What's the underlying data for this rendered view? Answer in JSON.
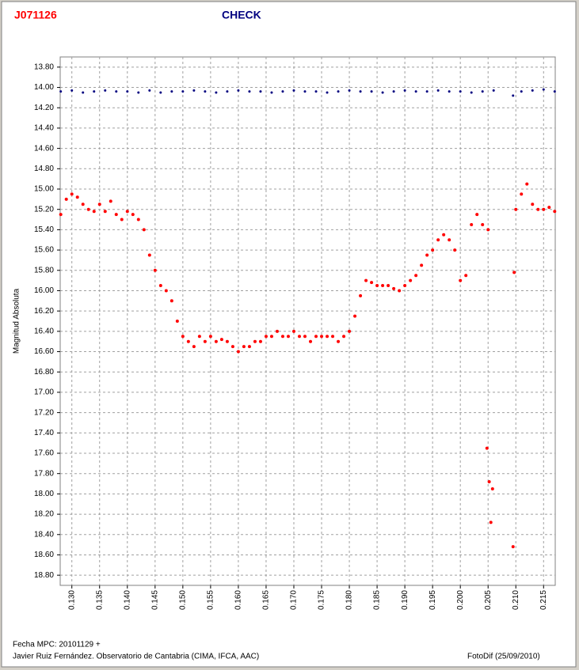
{
  "chart_data": {
    "type": "scatter",
    "y_label": "Magnitud Absoluta",
    "y_inverted": true,
    "grid": true,
    "xlim": [
      0.1279,
      0.2171
    ],
    "ylim": [
      13.7,
      18.9
    ],
    "xticks": [
      {
        "value": 0.13,
        "label": "0.130"
      },
      {
        "value": 0.135,
        "label": "0.135"
      },
      {
        "value": 0.14,
        "label": "0.140"
      },
      {
        "value": 0.145,
        "label": "0.145"
      },
      {
        "value": 0.15,
        "label": "0.150"
      },
      {
        "value": 0.155,
        "label": "0.155"
      },
      {
        "value": 0.16,
        "label": "0.160"
      },
      {
        "value": 0.165,
        "label": "0.165"
      },
      {
        "value": 0.17,
        "label": "0.170"
      },
      {
        "value": 0.175,
        "label": "0.175"
      },
      {
        "value": 0.18,
        "label": "0.180"
      },
      {
        "value": 0.185,
        "label": "0.185"
      },
      {
        "value": 0.19,
        "label": "0.190"
      },
      {
        "value": 0.195,
        "label": "0.195"
      },
      {
        "value": 0.2,
        "label": "0.200"
      },
      {
        "value": 0.205,
        "label": "0.205"
      },
      {
        "value": 0.21,
        "label": "0.210"
      },
      {
        "value": 0.215,
        "label": "0.215"
      }
    ],
    "yticks": [
      {
        "value": 13.8,
        "label": "13.80"
      },
      {
        "value": 14.0,
        "label": "14.00"
      },
      {
        "value": 14.2,
        "label": "14.20"
      },
      {
        "value": 14.4,
        "label": "14.40"
      },
      {
        "value": 14.6,
        "label": "14.60"
      },
      {
        "value": 14.8,
        "label": "14.80"
      },
      {
        "value": 15.0,
        "label": "15.00"
      },
      {
        "value": 15.2,
        "label": "15.20"
      },
      {
        "value": 15.4,
        "label": "15.40"
      },
      {
        "value": 15.6,
        "label": "15.60"
      },
      {
        "value": 15.8,
        "label": "15.80"
      },
      {
        "value": 16.0,
        "label": "16.00"
      },
      {
        "value": 16.2,
        "label": "16.20"
      },
      {
        "value": 16.4,
        "label": "16.40"
      },
      {
        "value": 16.6,
        "label": "16.60"
      },
      {
        "value": 16.8,
        "label": "16.80"
      },
      {
        "value": 17.0,
        "label": "17.00"
      },
      {
        "value": 17.2,
        "label": "17.20"
      },
      {
        "value": 17.4,
        "label": "17.40"
      },
      {
        "value": 17.6,
        "label": "17.60"
      },
      {
        "value": 17.8,
        "label": "17.80"
      },
      {
        "value": 18.0,
        "label": "18.00"
      },
      {
        "value": 18.2,
        "label": "18.20"
      },
      {
        "value": 18.4,
        "label": "18.40"
      },
      {
        "value": 18.6,
        "label": "18.60"
      },
      {
        "value": 18.8,
        "label": "18.80"
      }
    ],
    "series": [
      {
        "name": "J071126",
        "color": "#ff0000",
        "x": [
          0.128,
          0.129,
          0.13,
          0.131,
          0.132,
          0.133,
          0.134,
          0.135,
          0.136,
          0.137,
          0.138,
          0.139,
          0.14,
          0.141,
          0.142,
          0.143,
          0.144,
          0.145,
          0.146,
          0.147,
          0.148,
          0.149,
          0.15,
          0.151,
          0.152,
          0.153,
          0.154,
          0.155,
          0.156,
          0.157,
          0.158,
          0.159,
          0.16,
          0.161,
          0.162,
          0.163,
          0.164,
          0.165,
          0.166,
          0.167,
          0.168,
          0.169,
          0.17,
          0.171,
          0.172,
          0.173,
          0.174,
          0.175,
          0.176,
          0.177,
          0.178,
          0.179,
          0.18,
          0.181,
          0.182,
          0.183,
          0.184,
          0.185,
          0.186,
          0.187,
          0.188,
          0.189,
          0.19,
          0.191,
          0.192,
          0.193,
          0.194,
          0.195,
          0.196,
          0.197,
          0.198,
          0.199,
          0.2,
          0.201,
          0.202,
          0.203,
          0.204,
          0.205,
          0.2048,
          0.2052,
          0.2055,
          0.2058,
          0.2095,
          0.2097,
          0.21,
          0.211,
          0.212,
          0.213,
          0.214,
          0.215,
          0.216,
          0.217
        ],
        "values": [
          15.25,
          15.1,
          15.05,
          15.08,
          15.15,
          15.2,
          15.22,
          15.15,
          15.22,
          15.12,
          15.25,
          15.3,
          15.22,
          15.25,
          15.3,
          15.4,
          15.65,
          15.8,
          15.95,
          16.0,
          16.1,
          16.3,
          16.45,
          16.5,
          16.55,
          16.45,
          16.5,
          16.45,
          16.5,
          16.48,
          16.5,
          16.55,
          16.6,
          16.55,
          16.55,
          16.5,
          16.5,
          16.45,
          16.45,
          16.4,
          16.45,
          16.45,
          16.4,
          16.45,
          16.45,
          16.5,
          16.45,
          16.45,
          16.45,
          16.45,
          16.5,
          16.45,
          16.4,
          16.25,
          16.05,
          15.9,
          15.92,
          15.95,
          15.95,
          15.95,
          15.98,
          16.0,
          15.95,
          15.9,
          15.85,
          15.75,
          15.65,
          15.6,
          15.5,
          15.45,
          15.5,
          15.6,
          15.9,
          15.85,
          15.35,
          15.25,
          15.35,
          15.4,
          17.55,
          17.88,
          18.28,
          17.95,
          18.52,
          15.82,
          15.2,
          15.05,
          14.95,
          15.15,
          15.2,
          15.2,
          15.18,
          15.22
        ]
      },
      {
        "name": "CHECK",
        "color": "#000080",
        "x": [
          0.128,
          0.13,
          0.132,
          0.134,
          0.136,
          0.138,
          0.14,
          0.142,
          0.144,
          0.146,
          0.148,
          0.15,
          0.152,
          0.154,
          0.156,
          0.158,
          0.16,
          0.162,
          0.164,
          0.166,
          0.168,
          0.17,
          0.172,
          0.174,
          0.176,
          0.178,
          0.18,
          0.182,
          0.184,
          0.186,
          0.188,
          0.19,
          0.192,
          0.194,
          0.196,
          0.198,
          0.2,
          0.202,
          0.204,
          0.206,
          0.2095,
          0.211,
          0.213,
          0.215,
          0.217
        ],
        "values": [
          14.04,
          14.03,
          14.05,
          14.04,
          14.03,
          14.04,
          14.04,
          14.05,
          14.03,
          14.05,
          14.04,
          14.04,
          14.03,
          14.04,
          14.05,
          14.04,
          14.03,
          14.04,
          14.04,
          14.05,
          14.04,
          14.03,
          14.04,
          14.04,
          14.05,
          14.04,
          14.03,
          14.04,
          14.04,
          14.05,
          14.04,
          14.03,
          14.04,
          14.04,
          14.03,
          14.04,
          14.04,
          14.05,
          14.04,
          14.03,
          14.08,
          14.04,
          14.03,
          14.02,
          14.04
        ]
      }
    ]
  },
  "footer": {
    "date": "Fecha MPC: 20101129 +",
    "author": "Javier Ruiz Fernández. Observatorio de Cantabria (CIMA, IFCA, AAC)",
    "software": "FotoDif (25/09/2010)"
  }
}
